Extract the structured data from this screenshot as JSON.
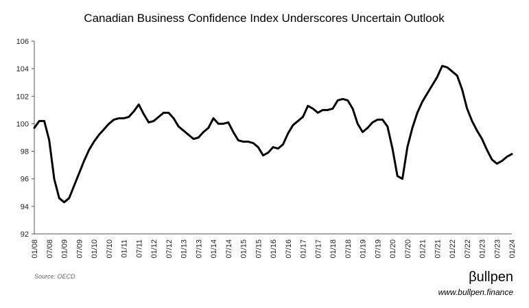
{
  "chart_data": {
    "type": "line",
    "title": "Canadian Business Confidence Index Underscores Uncertain Outlook",
    "source": "Source: OECD",
    "brand": "βullpen",
    "website": "www.bullpen.finance",
    "categories": [
      "01/08",
      null,
      null,
      "07/08",
      null,
      null,
      "01/09",
      null,
      null,
      "07/09",
      null,
      null,
      "01/10",
      null,
      null,
      "07/10",
      null,
      null,
      "01/11",
      null,
      null,
      "07/11",
      null,
      null,
      "01/12",
      null,
      null,
      "07/12",
      null,
      null,
      "01/13",
      null,
      null,
      "07/13",
      null,
      null,
      "01/14",
      null,
      null,
      "07/14",
      null,
      null,
      "01/15",
      null,
      null,
      "07/15",
      null,
      null,
      "01/16",
      null,
      null,
      "07/16",
      null,
      null,
      "01/17",
      null,
      null,
      "07/17",
      null,
      null,
      "01/18",
      null,
      null,
      "07/18",
      null,
      null,
      "01/19",
      null,
      null,
      "07/19",
      null,
      null,
      "01/20",
      null,
      null,
      "07/20",
      null,
      null,
      "01/21",
      null,
      null,
      "07/21",
      null,
      null,
      "01/22",
      null,
      null,
      "07/22",
      null,
      null,
      "01/23",
      null,
      null,
      "07/23",
      null,
      null,
      "01/24"
    ],
    "series": [
      {
        "name": "Business Confidence Index",
        "color": "#000000",
        "values": [
          99.7,
          100.2,
          100.2,
          98.8,
          96.0,
          94.6,
          94.3,
          94.6,
          95.5,
          96.4,
          97.3,
          98.1,
          98.7,
          99.2,
          99.6,
          100.0,
          100.3,
          100.4,
          100.4,
          100.5,
          100.9,
          101.4,
          100.7,
          100.1,
          100.2,
          100.5,
          100.8,
          100.8,
          100.4,
          99.8,
          99.5,
          99.2,
          98.9,
          99.0,
          99.4,
          99.7,
          100.4,
          100.0,
          100.0,
          100.1,
          99.4,
          98.8,
          98.7,
          98.7,
          98.6,
          98.3,
          97.7,
          97.9,
          98.3,
          98.2,
          98.5,
          99.3,
          99.9,
          100.2,
          100.5,
          101.3,
          101.1,
          100.8,
          101.0,
          101.0,
          101.1,
          101.7,
          101.8,
          101.7,
          101.1,
          100.0,
          99.4,
          99.7,
          100.1,
          100.3,
          100.3,
          99.8,
          98.2,
          96.2,
          96.0,
          98.3,
          99.7,
          100.8,
          101.6,
          102.2,
          102.8,
          103.4,
          104.2,
          104.1,
          103.8,
          103.5,
          102.5,
          101.1,
          100.2,
          99.5,
          98.9,
          98.1,
          97.4,
          97.1,
          97.3,
          97.6,
          97.8
        ]
      }
    ],
    "ylim": [
      92,
      106
    ],
    "yticks": [
      92,
      94,
      96,
      98,
      100,
      102,
      104,
      106
    ],
    "grid": false
  }
}
